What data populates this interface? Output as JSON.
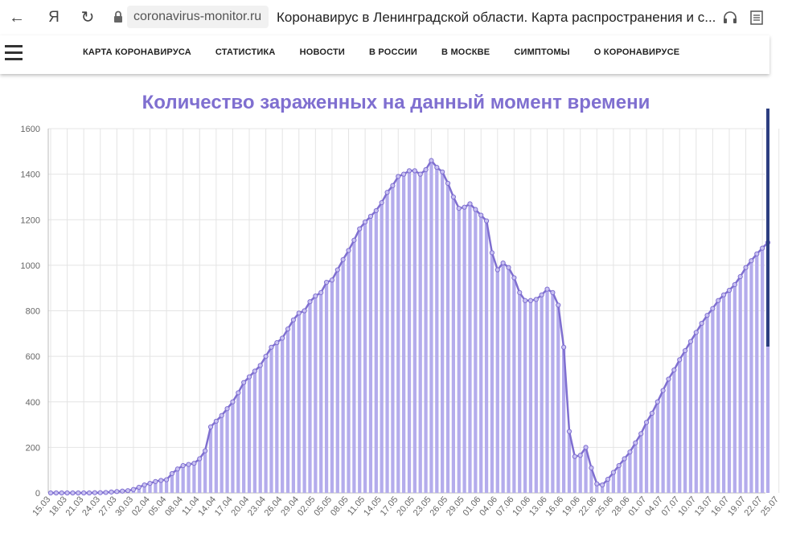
{
  "browser": {
    "domain": "coronavirus-monitor.ru",
    "title": "Коронавирус в Ленинградской области. Карта распространения и с...",
    "logo": "Я"
  },
  "nav": {
    "items": [
      {
        "label": "КАРТА КОРОНАВИРУСА"
      },
      {
        "label": "СТАТИСТИКА"
      },
      {
        "label": "НОВОСТИ"
      },
      {
        "label": "В РОССИИ"
      },
      {
        "label": "В МОСКВЕ"
      },
      {
        "label": "СИМПТОМЫ"
      },
      {
        "label": "О КОРОНАВИРУСЕ"
      }
    ]
  },
  "chart_data": {
    "type": "bar",
    "title": "Количество зараженных на данный момент времени",
    "ylim": [
      0,
      1600
    ],
    "yticks": [
      0,
      200,
      400,
      600,
      800,
      1000,
      1200,
      1400,
      1600
    ],
    "xtick_labels": [
      "15.03",
      "18.03",
      "21.03",
      "24.03",
      "27.03",
      "30.03",
      "02.04",
      "05.04",
      "08.04",
      "11.04",
      "14.04",
      "17.04",
      "20.04",
      "23.04",
      "26.04",
      "29.04",
      "02.05",
      "05.05",
      "08.05",
      "11.05",
      "14.05",
      "17.05",
      "20.05",
      "23.05",
      "26.05",
      "29.05",
      "01.06",
      "04.06",
      "07.06",
      "10.06",
      "13.06",
      "16.06",
      "19.06",
      "22.06",
      "25.06",
      "28.06",
      "01.07",
      "04.07",
      "07.07",
      "10.07",
      "13.07",
      "16.07",
      "19.07",
      "22.07",
      "25.07"
    ],
    "bar_color": "#b4acec",
    "line_color": "#7f6fd0",
    "grid": true,
    "values": [
      0,
      0,
      0,
      0,
      0,
      0,
      0,
      0,
      1,
      1,
      2,
      4,
      6,
      8,
      10,
      15,
      25,
      35,
      42,
      50,
      55,
      58,
      85,
      105,
      120,
      125,
      130,
      150,
      185,
      290,
      315,
      340,
      370,
      400,
      440,
      485,
      510,
      535,
      560,
      600,
      640,
      660,
      680,
      720,
      760,
      790,
      800,
      840,
      865,
      880,
      925,
      935,
      980,
      1025,
      1065,
      1110,
      1160,
      1190,
      1215,
      1240,
      1275,
      1320,
      1350,
      1390,
      1400,
      1415,
      1415,
      1400,
      1420,
      1460,
      1430,
      1410,
      1360,
      1300,
      1250,
      1255,
      1270,
      1245,
      1220,
      1195,
      1055,
      980,
      1010,
      990,
      945,
      880,
      845,
      845,
      850,
      870,
      895,
      880,
      825,
      640,
      270,
      160,
      165,
      200,
      110,
      40,
      35,
      60,
      90,
      120,
      150,
      180,
      220,
      260,
      310,
      350,
      400,
      450,
      500,
      540,
      585,
      625,
      665,
      705,
      745,
      780,
      810,
      845,
      870,
      890,
      915,
      950,
      990,
      1020,
      1050,
      1075,
      1100
    ]
  }
}
